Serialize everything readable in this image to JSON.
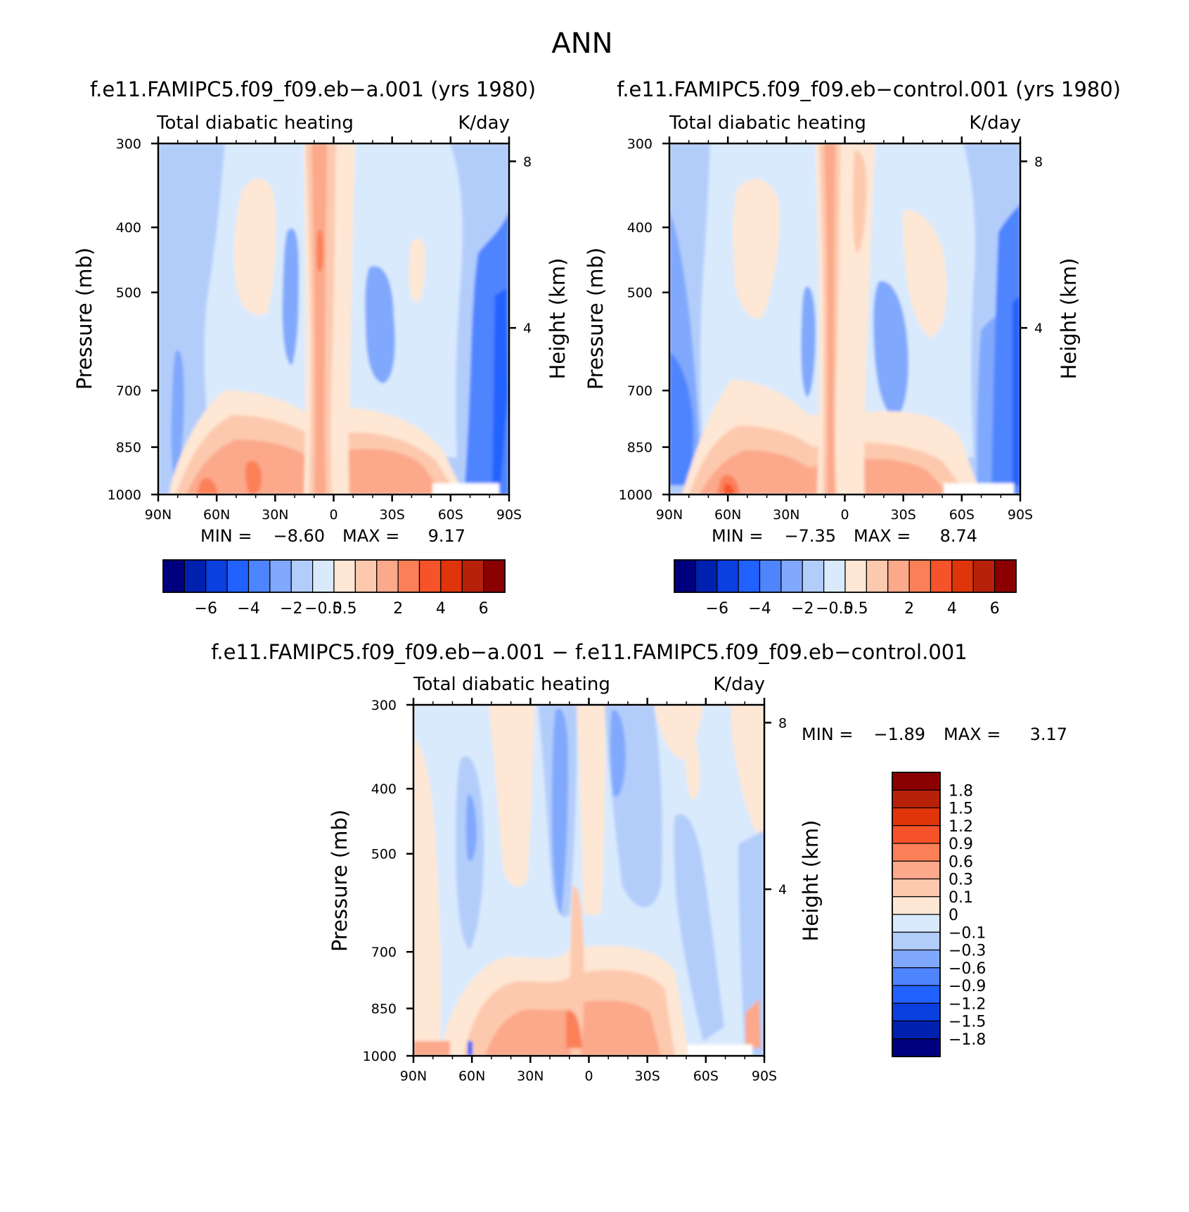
{
  "page": {
    "title": "ANN"
  },
  "colors": {
    "main_scale": [
      "#00007f",
      "#0020b0",
      "#0a3fe0",
      "#2162ff",
      "#4f84ff",
      "#80a8fc",
      "#b3cdfb",
      "#d9eafd",
      "#fee7d4",
      "#fdc9ae",
      "#fca88a",
      "#fb8058",
      "#f6532a",
      "#e0350a",
      "#b82109",
      "#8b0000"
    ],
    "diff_scale": [
      "#00007f",
      "#0020b0",
      "#0a3fe0",
      "#2162ff",
      "#4f84ff",
      "#80a8fc",
      "#b3cdfb",
      "#d9eafd",
      "#fee7d4",
      "#fdc9ae",
      "#fca88a",
      "#fb8058",
      "#f6532a",
      "#e0350a",
      "#b82109",
      "#8b0000"
    ]
  },
  "chart_data": [
    {
      "type": "heatmap",
      "title": "f.e11.FAMIPC5.f09_f09.eb−a.001 (yrs 1980)",
      "subtitle_left": "Total diabatic heating",
      "subtitle_right": "K/day",
      "xlabel": "",
      "ylabel": "Pressure (mb)",
      "ylabel_right": "Height (km)",
      "x_ticks": [
        "90N",
        "60N",
        "30N",
        "0",
        "30S",
        "60S",
        "90S"
      ],
      "y_ticks": [
        "300",
        "400",
        "500",
        "700",
        "850",
        "1000"
      ],
      "y_right_ticks": [
        "8",
        "4"
      ],
      "ylim": [
        1000,
        300
      ],
      "min_label": "MIN =",
      "min_value": "−8.60",
      "max_label": "MAX =",
      "max_value": "9.17",
      "colorbar_labels": [
        "−6",
        "−4",
        "−2",
        "−0.5",
        "0.5",
        "2",
        "4",
        "6"
      ]
    },
    {
      "type": "heatmap",
      "title": "f.e11.FAMIPC5.f09_f09.eb−control.001 (yrs 1980)",
      "subtitle_left": "Total diabatic heating",
      "subtitle_right": "K/day",
      "xlabel": "",
      "ylabel": "Pressure (mb)",
      "ylabel_right": "Height (km)",
      "x_ticks": [
        "90N",
        "60N",
        "30N",
        "0",
        "30S",
        "60S",
        "90S"
      ],
      "y_ticks": [
        "300",
        "400",
        "500",
        "700",
        "850",
        "1000"
      ],
      "y_right_ticks": [
        "8",
        "4"
      ],
      "ylim": [
        1000,
        300
      ],
      "min_label": "MIN =",
      "min_value": "−7.35",
      "max_label": "MAX =",
      "max_value": "8.74",
      "colorbar_labels": [
        "−6",
        "−4",
        "−2",
        "−0.5",
        "0.5",
        "2",
        "4",
        "6"
      ]
    },
    {
      "type": "heatmap",
      "title": "f.e11.FAMIPC5.f09_f09.eb−a.001 − f.e11.FAMIPC5.f09_f09.eb−control.001",
      "subtitle_left": "Total diabatic heating",
      "subtitle_right": "K/day",
      "xlabel": "",
      "ylabel": "Pressure (mb)",
      "ylabel_right": "Height (km)",
      "x_ticks": [
        "90N",
        "60N",
        "30N",
        "0",
        "30S",
        "60S",
        "90S"
      ],
      "y_ticks": [
        "300",
        "400",
        "500",
        "700",
        "850",
        "1000"
      ],
      "y_right_ticks": [
        "8",
        "4"
      ],
      "ylim": [
        1000,
        300
      ],
      "min_label": "MIN =",
      "min_value": "−1.89",
      "max_label": "MAX =",
      "max_value": "3.17",
      "colorbar_labels": [
        "1.8",
        "1.5",
        "1.2",
        "0.9",
        "0.6",
        "0.3",
        "0.1",
        "0",
        "−0.1",
        "−0.3",
        "−0.6",
        "−0.9",
        "−1.2",
        "−1.5",
        "−1.8"
      ]
    }
  ]
}
